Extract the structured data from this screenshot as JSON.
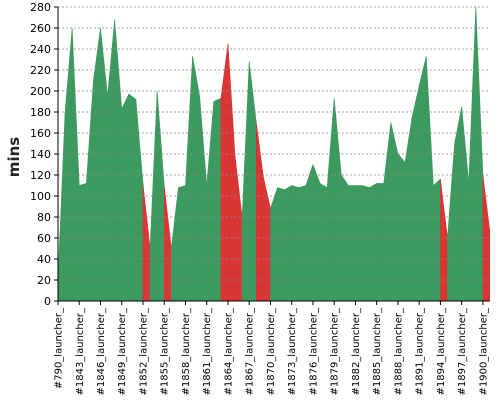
{
  "chart_data": {
    "type": "area",
    "title": "",
    "xlabel": "",
    "ylabel": "mins",
    "ylim": [
      0,
      280
    ],
    "yticks": [
      0,
      20,
      40,
      60,
      80,
      100,
      120,
      140,
      160,
      180,
      200,
      220,
      240,
      260,
      280
    ],
    "grid": true,
    "legend": "none",
    "x_tick_labels": [
      "#790_launcher_",
      "#1843_launcher_",
      "#1846_launcher_",
      "#1849_launcher_",
      "#1852_launcher_",
      "#1855_launcher_",
      "#1858_launcher_",
      "#1861_launcher_",
      "#1864_launcher_",
      "#1867_launcher_",
      "#1870_launcher_",
      "#1873_launcher_",
      "#1876_launcher_",
      "#1879_launcher_",
      "#1882_launcher_",
      "#1885_launcher_",
      "#1888_launcher_",
      "#1891_launcher_",
      "#1894_launcher_",
      "#1897_launcher_",
      "#1900_launcher_"
    ],
    "x_tick_indices": [
      0,
      3,
      6,
      9,
      12,
      15,
      18,
      21,
      24,
      27,
      30,
      33,
      36,
      39,
      42,
      45,
      48,
      51,
      54,
      57,
      60
    ],
    "colors": {
      "success": "#3d9a5f",
      "failure": "#d93535"
    },
    "values": [
      20,
      180,
      260,
      110,
      112,
      210,
      260,
      195,
      268,
      183,
      197,
      192,
      112,
      50,
      200,
      110,
      50,
      108,
      110,
      233,
      195,
      110,
      190,
      193,
      245,
      138,
      80,
      228,
      170,
      118,
      88,
      108,
      106,
      110,
      108,
      110,
      130,
      112,
      108,
      193,
      120,
      110,
      110,
      110,
      108,
      112,
      112,
      170,
      140,
      132,
      175,
      205,
      233,
      110,
      116,
      60,
      150,
      185,
      113,
      290,
      120,
      65
    ],
    "status": [
      "s",
      "s",
      "s",
      "s",
      "s",
      "s",
      "s",
      "s",
      "s",
      "s",
      "s",
      "s",
      "s",
      "f",
      "s",
      "s",
      "f",
      "s",
      "s",
      "s",
      "s",
      "s",
      "s",
      "s",
      "f",
      "f",
      "f",
      "s",
      "s",
      "f",
      "f",
      "s",
      "s",
      "s",
      "s",
      "s",
      "s",
      "s",
      "s",
      "s",
      "s",
      "s",
      "s",
      "s",
      "s",
      "s",
      "s",
      "s",
      "s",
      "s",
      "s",
      "s",
      "s",
      "s",
      "s",
      "f",
      "s",
      "s",
      "s",
      "s",
      "s",
      "f"
    ]
  }
}
